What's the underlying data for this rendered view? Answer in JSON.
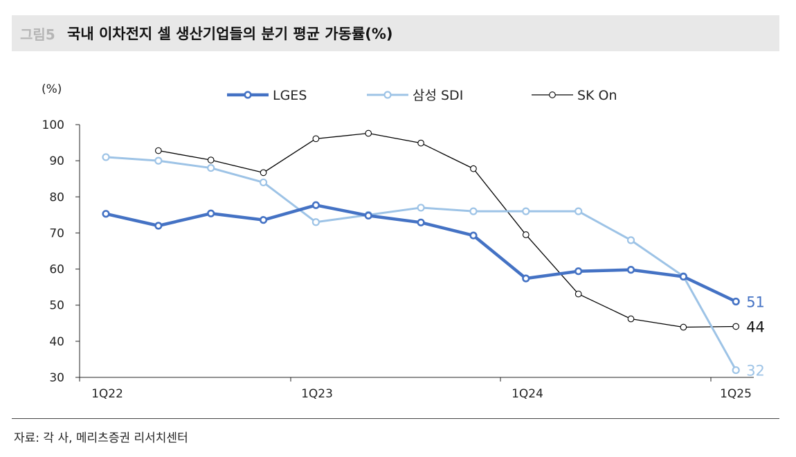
{
  "header": {
    "figure_label": "그림5",
    "title": "국내 이차전지 셀 생산기업들의 분기 평균 가동률(%)"
  },
  "footer": {
    "source": "자료: 각 사, 메리츠증권 리서치센터"
  },
  "chart_data": {
    "type": "line",
    "title": "",
    "ylabel": "(%)",
    "xlabel": "",
    "ylim": [
      30,
      100
    ],
    "yticks": [
      30,
      40,
      50,
      60,
      70,
      80,
      90,
      100
    ],
    "x_tick_labels": [
      "1Q22",
      "1Q23",
      "1Q24",
      "1Q25"
    ],
    "grid": false,
    "legend_position": "top",
    "series": [
      {
        "name": "LGES",
        "color": "#4472c4",
        "style": "thick",
        "points": [
          [
            0,
            75.3
          ],
          [
            1,
            72
          ],
          [
            2,
            75.4
          ],
          [
            3,
            73.6
          ],
          [
            4,
            77.7
          ],
          [
            5,
            74.8
          ],
          [
            6,
            72.9
          ],
          [
            7,
            69.3
          ],
          [
            8,
            57.4
          ],
          [
            9,
            59.4
          ],
          [
            10,
            59.8
          ],
          [
            11,
            57.9
          ],
          [
            12,
            51
          ]
        ],
        "end_label": "51"
      },
      {
        "name": "삼성 SDI",
        "color": "#9dc3e6",
        "style": "medium",
        "points": [
          [
            0,
            91
          ],
          [
            1,
            90
          ],
          [
            2,
            88
          ],
          [
            3,
            84
          ],
          [
            4,
            73
          ],
          [
            5,
            75
          ],
          [
            6,
            77
          ],
          [
            7,
            76
          ],
          [
            8,
            76
          ],
          [
            9,
            76
          ],
          [
            10,
            68
          ],
          [
            11,
            58
          ],
          [
            12,
            32
          ]
        ],
        "end_label": "32"
      },
      {
        "name": "SK On",
        "color": "#000000",
        "style": "thin",
        "points": [
          [
            1,
            92.8
          ],
          [
            2,
            90.2
          ],
          [
            3,
            86.7
          ],
          [
            4,
            96.1
          ],
          [
            5,
            97.6
          ],
          [
            6,
            94.9
          ],
          [
            7,
            87.8
          ],
          [
            8,
            69.5
          ],
          [
            9,
            53.1
          ],
          [
            10,
            46.2
          ],
          [
            11,
            43.9
          ],
          [
            12,
            44.1
          ]
        ],
        "end_label": "44"
      }
    ]
  }
}
